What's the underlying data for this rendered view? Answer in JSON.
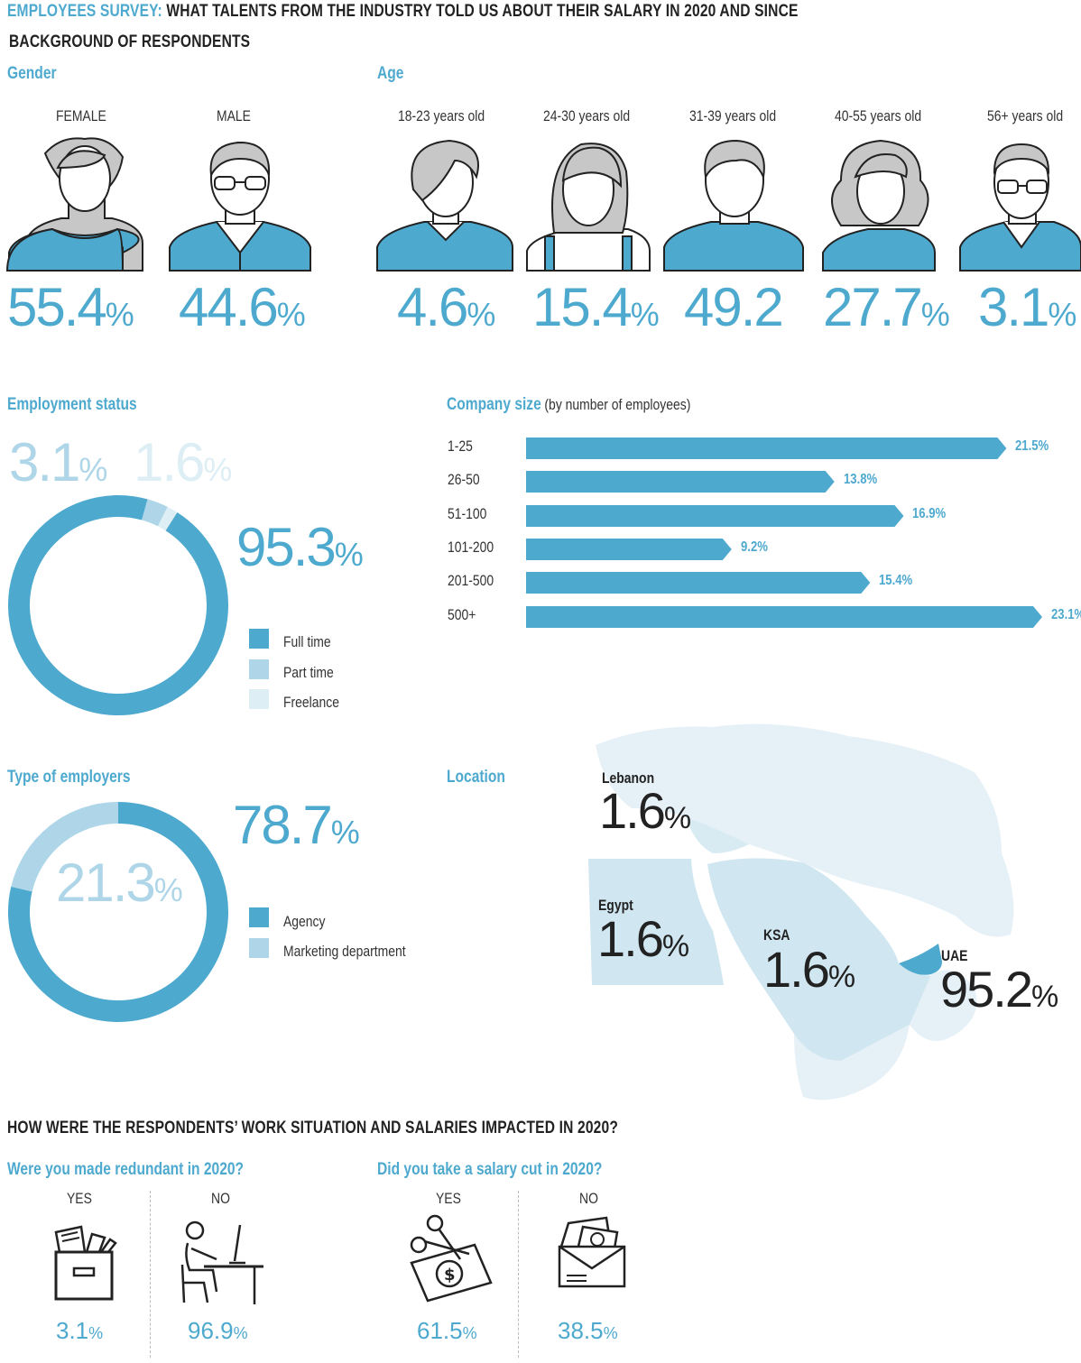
{
  "header": {
    "title_accent": "EMPLOYEES SURVEY:",
    "title_rest": "WHAT TALENTS FROM THE INDUSTRY TOLD US ABOUT THEIR SALARY IN 2020 AND SINCE",
    "subtitle": "BACKGROUND OF RESPONDENTS"
  },
  "colors": {
    "accent": "#4ea9cf",
    "light": "#aed6e8",
    "lighter": "#ddeef5",
    "map_base": "#e6f1f7",
    "map_mid": "#d0e6f0"
  },
  "gender": {
    "title": "Gender",
    "items": [
      {
        "label": "FEMALE",
        "value": "55.4",
        "unit": "%"
      },
      {
        "label": "MALE",
        "value": "44.6",
        "unit": "%"
      }
    ]
  },
  "age": {
    "title": "Age",
    "items": [
      {
        "label": "18-23 years old",
        "value": "4.6",
        "unit": "%"
      },
      {
        "label": "24-30 years old",
        "value": "15.4",
        "unit": "%"
      },
      {
        "label": "31-39 years old",
        "value": "49.2",
        "unit": ""
      },
      {
        "label": "40-55 years old",
        "value": "27.7",
        "unit": "%"
      },
      {
        "label": "56+ years old",
        "value": "3.1",
        "unit": "%"
      }
    ]
  },
  "employment": {
    "title": "Employment status",
    "big_value": "95.3",
    "big_unit": "%",
    "part_value": "3.1",
    "part_unit": "%",
    "free_value": "1.6",
    "free_unit": "%",
    "legend": [
      "Full time",
      "Part time",
      "Freelance"
    ]
  },
  "company_size": {
    "title": "Company size",
    "note": "(by number of employees)"
  },
  "employers": {
    "title": "Type of employers",
    "agency_value": "78.7",
    "agency_unit": "%",
    "marketing_value": "21.3",
    "marketing_unit": "%",
    "legend": [
      "Agency",
      "Marketing department"
    ]
  },
  "location": {
    "title": "Location",
    "items": [
      {
        "name": "Lebanon",
        "value": "1.6",
        "unit": "%"
      },
      {
        "name": "Egypt",
        "value": "1.6",
        "unit": "%"
      },
      {
        "name": "KSA",
        "value": "1.6",
        "unit": "%"
      },
      {
        "name": "UAE",
        "value": "95.2",
        "unit": "%"
      }
    ]
  },
  "impact": {
    "title": "HOW WERE THE RESPONDENTS’ WORK SITUATION AND SALARIES IMPACTED IN 2020?",
    "redundant": {
      "question": "Were you made redundant in 2020?",
      "yes_label": "YES",
      "yes_value": "3.1",
      "yes_unit": "%",
      "no_label": "NO",
      "no_value": "96.9",
      "no_unit": "%"
    },
    "salary_cut": {
      "question": "Did you take a salary cut in 2020?",
      "yes_label": "YES",
      "yes_value": "61.5",
      "yes_unit": "%",
      "no_label": "NO",
      "no_value": "38.5",
      "no_unit": "%"
    }
  },
  "chart_data": [
    {
      "type": "pie",
      "title": "Gender",
      "categories": [
        "FEMALE",
        "MALE"
      ],
      "values": [
        55.4,
        44.6
      ]
    },
    {
      "type": "pie",
      "title": "Age",
      "categories": [
        "18-23 years old",
        "24-30 years old",
        "31-39 years old",
        "40-55 years old",
        "56+ years old"
      ],
      "values": [
        4.6,
        15.4,
        49.2,
        27.7,
        3.1
      ]
    },
    {
      "type": "pie",
      "title": "Employment status",
      "categories": [
        "Full time",
        "Part time",
        "Freelance"
      ],
      "values": [
        95.3,
        3.1,
        1.6
      ]
    },
    {
      "type": "bar",
      "title": "Company size",
      "categories": [
        "1-25",
        "26-50",
        "51-100",
        "101-200",
        "201-500",
        "500+"
      ],
      "values": [
        21.5,
        13.8,
        16.9,
        9.2,
        15.4,
        23.1
      ],
      "labels": [
        "21.5%",
        "13.8%",
        "16.9%",
        "9.2%",
        "15.4%",
        "23.1%"
      ],
      "xlim": [
        0,
        23.1
      ]
    },
    {
      "type": "pie",
      "title": "Type of employers",
      "categories": [
        "Agency",
        "Marketing department"
      ],
      "values": [
        78.7,
        21.3
      ]
    },
    {
      "type": "table",
      "title": "Location",
      "categories": [
        "Lebanon",
        "Egypt",
        "KSA",
        "UAE"
      ],
      "values": [
        1.6,
        1.6,
        1.6,
        95.2
      ]
    },
    {
      "type": "pie",
      "title": "Were you made redundant in 2020?",
      "categories": [
        "YES",
        "NO"
      ],
      "values": [
        3.1,
        96.9
      ]
    },
    {
      "type": "pie",
      "title": "Did you take a salary cut in 2020?",
      "categories": [
        "YES",
        "NO"
      ],
      "values": [
        61.5,
        38.5
      ]
    }
  ]
}
